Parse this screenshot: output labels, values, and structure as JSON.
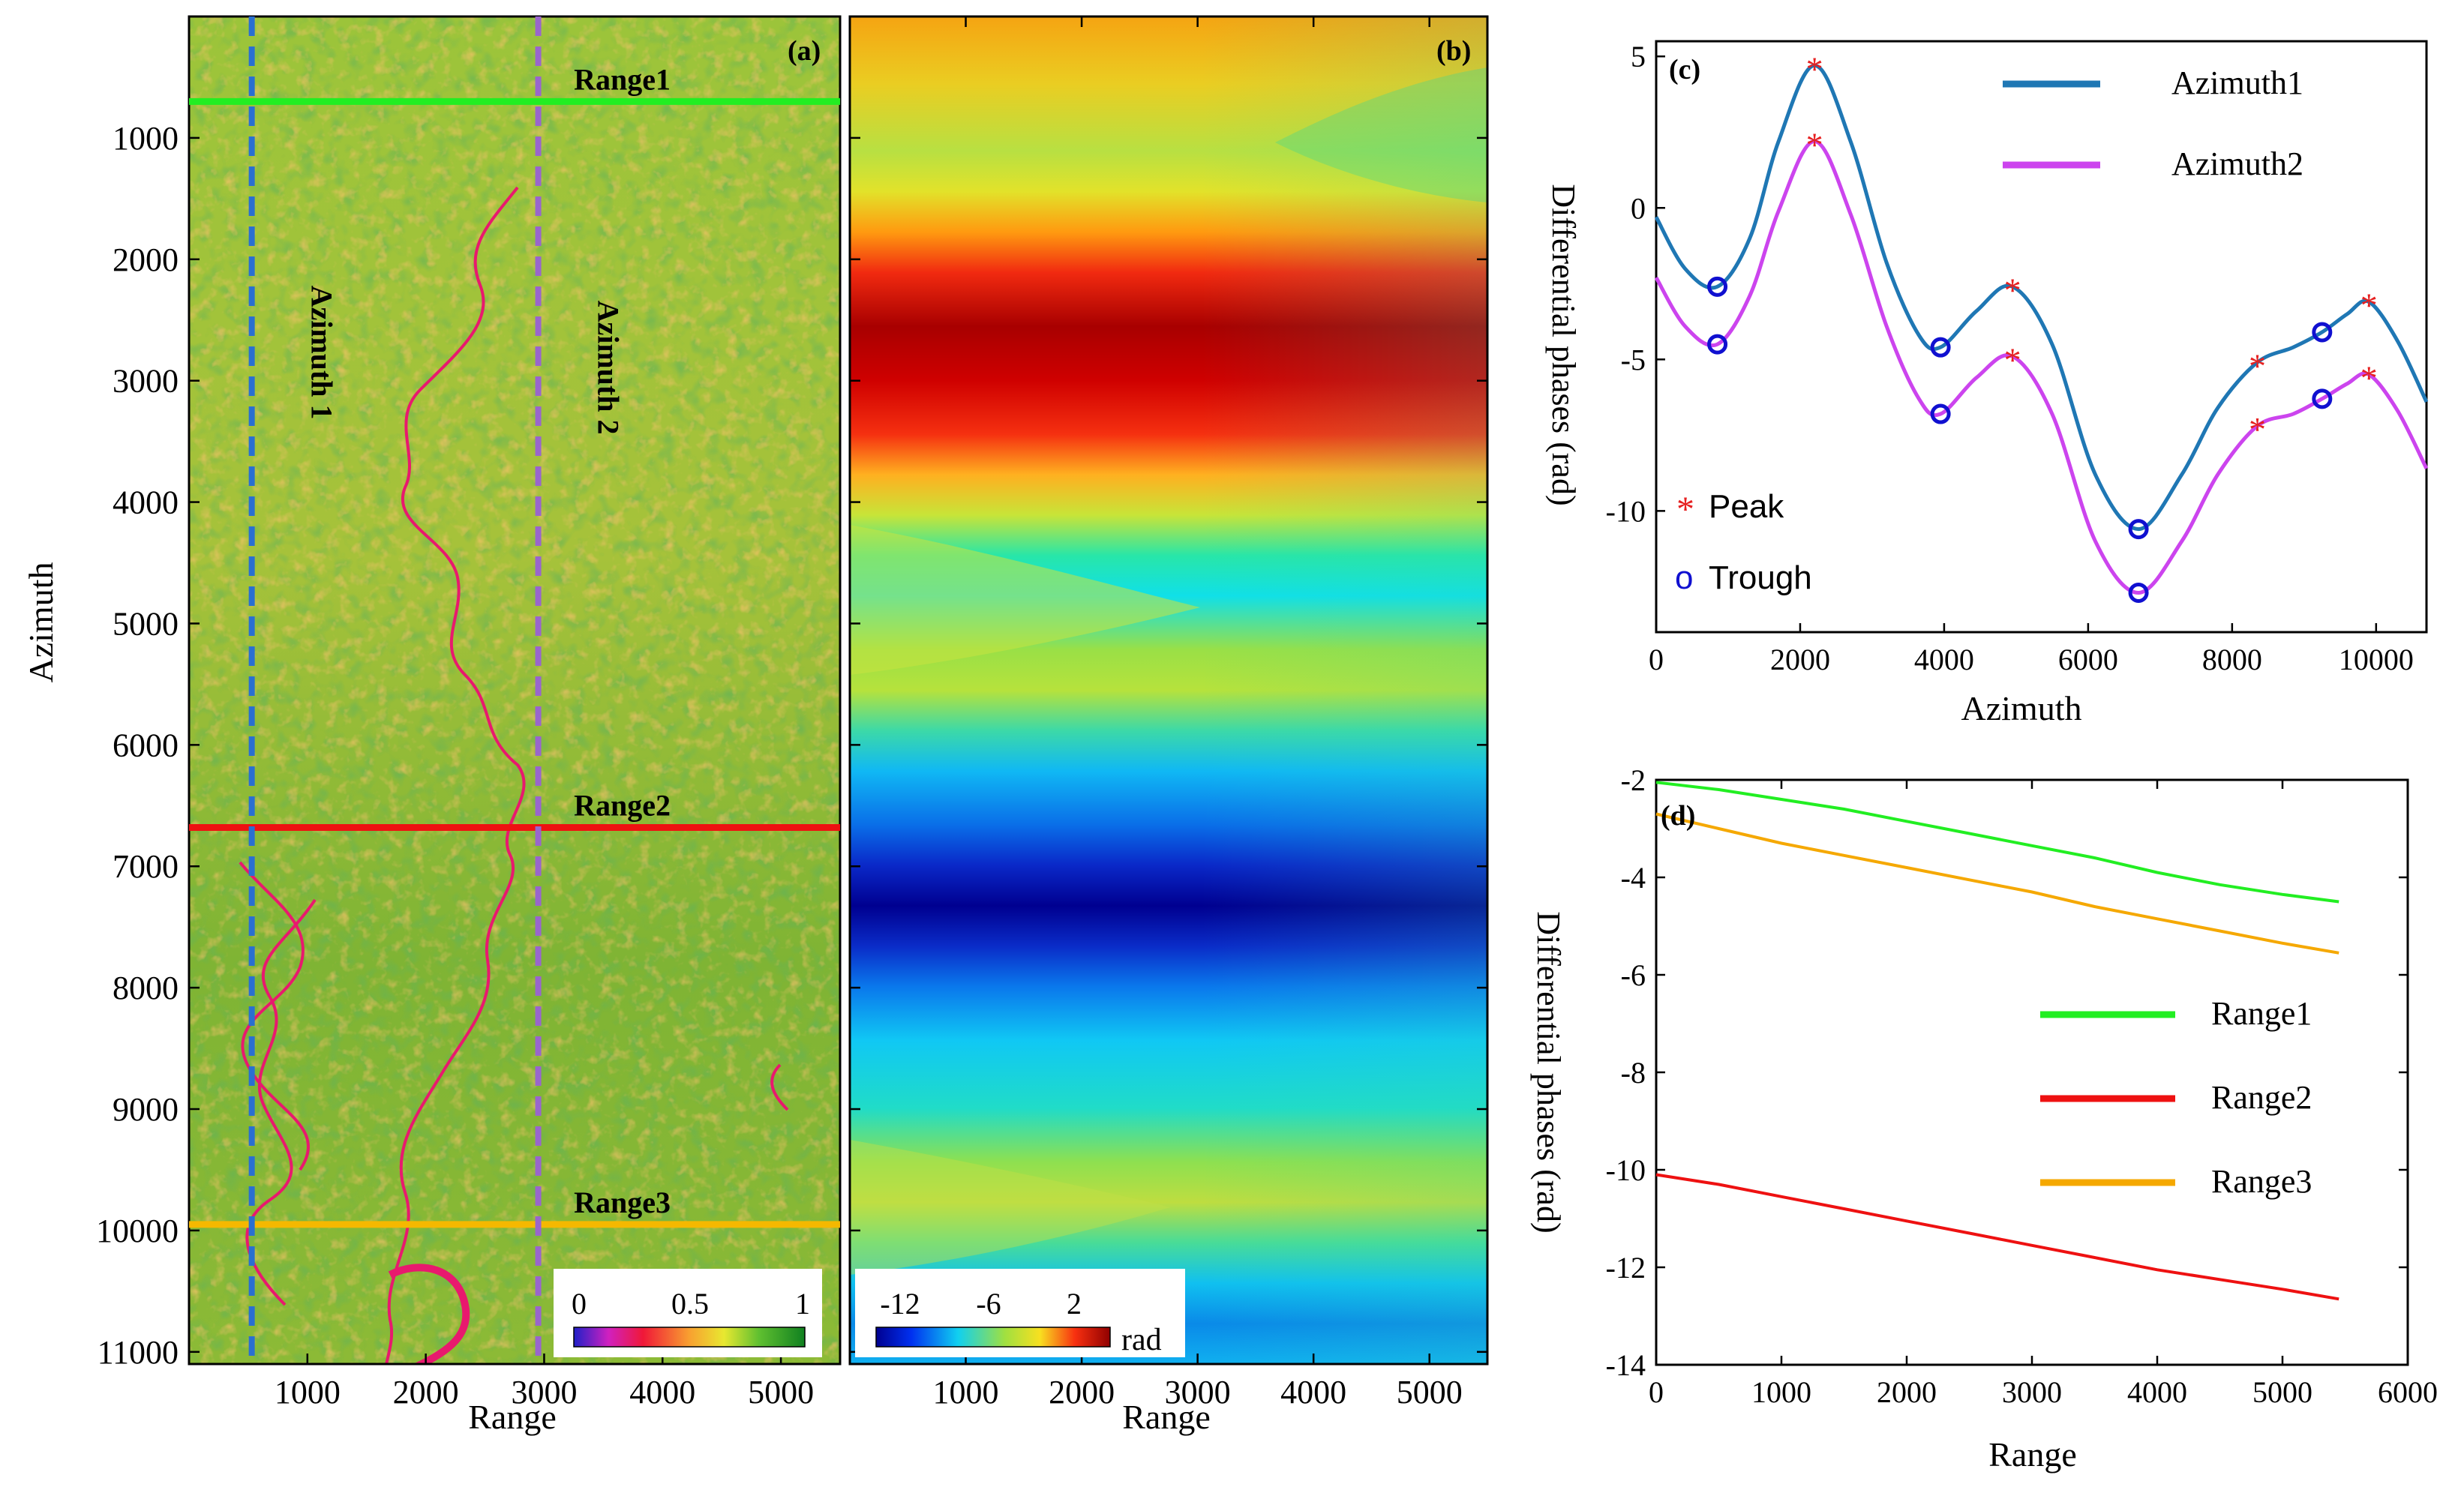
{
  "chart_data": [
    {
      "panel": "a",
      "type": "heatmap",
      "panel_label": "(a)",
      "description_labels": {
        "xlabel": "Range",
        "ylabel": "Azimuth"
      },
      "x_ticks": [
        1000,
        2000,
        3000,
        4000,
        5000
      ],
      "y_ticks": [
        1000,
        2000,
        3000,
        4000,
        5000,
        6000,
        7000,
        8000,
        9000,
        10000,
        11000
      ],
      "xlim": [
        0,
        5500
      ],
      "ylim": [
        0,
        11100
      ],
      "lines": [
        {
          "name": "Range1",
          "axis": "azimuth",
          "value": 700,
          "color": "#22ee22"
        },
        {
          "name": "Range2",
          "axis": "azimuth",
          "value": 6680,
          "color": "#ee1111"
        },
        {
          "name": "Range3",
          "axis": "azimuth",
          "value": 9950,
          "color": "#f5b800"
        },
        {
          "name": "Azimuth 1",
          "axis": "range",
          "value": 530,
          "color": "#2a6fd1"
        },
        {
          "name": "Azimuth 2",
          "axis": "range",
          "value": 2950,
          "color": "#9966cc"
        }
      ],
      "colorbar": {
        "ticks": [
          "0",
          "0.5",
          "1"
        ],
        "min": 0,
        "max": 1
      }
    },
    {
      "panel": "b",
      "type": "heatmap",
      "panel_label": "(b)",
      "xlabel": "Range",
      "x_ticks": [
        1000,
        2000,
        3000,
        4000,
        5000
      ],
      "colorbar": {
        "ticks": [
          "-12",
          "-6",
          "2"
        ],
        "unit": "rad",
        "min": -14,
        "max": 6
      }
    },
    {
      "panel": "c",
      "type": "line",
      "panel_label": "(c)",
      "xlabel": "Azimuth",
      "ylabel": "Differential phases (rad)",
      "xlim": [
        0,
        10700
      ],
      "ylim": [
        -14,
        5.5
      ],
      "x_ticks": [
        0,
        2000,
        4000,
        6000,
        8000,
        10000
      ],
      "y_ticks": [
        5,
        0,
        -5,
        -10
      ],
      "series": [
        {
          "name": "Azimuth1",
          "color": "#1f77b4",
          "x": [
            0,
            400,
            850,
            1300,
            1700,
            2200,
            2700,
            3200,
            3650,
            3950,
            4450,
            4950,
            5500,
            6100,
            6700,
            7300,
            7800,
            8350,
            8850,
            9250,
            9600,
            9900,
            10300,
            10700
          ],
          "y": [
            -0.3,
            -2.0,
            -2.6,
            -1.0,
            2.2,
            4.7,
            2.2,
            -1.8,
            -4.2,
            -4.6,
            -3.4,
            -2.6,
            -4.5,
            -8.8,
            -10.6,
            -8.8,
            -6.6,
            -5.1,
            -4.6,
            -4.1,
            -3.5,
            -3.1,
            -4.4,
            -6.4
          ]
        },
        {
          "name": "Azimuth2",
          "color": "#cc44ee",
          "x": [
            0,
            400,
            850,
            1300,
            1700,
            2200,
            2700,
            3200,
            3650,
            3950,
            4450,
            4950,
            5500,
            6100,
            6700,
            7300,
            7800,
            8350,
            8850,
            9250,
            9600,
            9900,
            10300,
            10700
          ],
          "y": [
            -2.3,
            -3.9,
            -4.5,
            -2.9,
            -0.1,
            2.2,
            -0.2,
            -3.9,
            -6.3,
            -6.8,
            -5.6,
            -4.9,
            -6.8,
            -11.0,
            -12.7,
            -11.0,
            -8.8,
            -7.2,
            -6.8,
            -6.3,
            -5.8,
            -5.5,
            -6.7,
            -8.6
          ]
        }
      ],
      "peaks": {
        "Azimuth1": [
          [
            2200,
            4.7
          ],
          [
            4950,
            -2.6
          ],
          [
            8350,
            -5.1
          ],
          [
            9900,
            -3.1
          ]
        ],
        "Azimuth2": [
          [
            2200,
            2.2
          ],
          [
            4950,
            -4.9
          ],
          [
            8350,
            -7.2
          ],
          [
            9900,
            -5.5
          ]
        ]
      },
      "troughs": {
        "Azimuth1": [
          [
            850,
            -2.6
          ],
          [
            3950,
            -4.6
          ],
          [
            6700,
            -10.6
          ],
          [
            9250,
            -4.1
          ]
        ],
        "Azimuth2": [
          [
            850,
            -4.5
          ],
          [
            3950,
            -6.8
          ],
          [
            6700,
            -12.7
          ],
          [
            9250,
            -6.3
          ]
        ]
      },
      "legend": {
        "peak_symbol": "*",
        "peak_label": "Peak",
        "trough_symbol": "o",
        "trough_label": "Trough"
      }
    },
    {
      "panel": "d",
      "type": "line",
      "panel_label": "(d)",
      "xlabel": "Range",
      "ylabel": "Differential phases (rad)",
      "xlim": [
        0,
        6000
      ],
      "ylim": [
        -14,
        -2
      ],
      "x_ticks": [
        0,
        1000,
        2000,
        3000,
        4000,
        5000,
        6000
      ],
      "y_ticks": [
        -2,
        -4,
        -6,
        -8,
        -10,
        -12,
        -14
      ],
      "series": [
        {
          "name": "Range1",
          "color": "#22ee22",
          "x": [
            0,
            500,
            1000,
            1500,
            2000,
            2500,
            3000,
            3500,
            4000,
            4500,
            5000,
            5450
          ],
          "y": [
            -2.05,
            -2.2,
            -2.4,
            -2.6,
            -2.85,
            -3.1,
            -3.35,
            -3.6,
            -3.9,
            -4.15,
            -4.35,
            -4.5
          ]
        },
        {
          "name": "Range2",
          "color": "#ee1111",
          "x": [
            0,
            500,
            1000,
            1500,
            2000,
            2500,
            3000,
            3500,
            4000,
            4500,
            5000,
            5450
          ],
          "y": [
            -10.1,
            -10.3,
            -10.55,
            -10.8,
            -11.05,
            -11.3,
            -11.55,
            -11.8,
            -12.05,
            -12.25,
            -12.45,
            -12.65
          ]
        },
        {
          "name": "Range3",
          "color": "#f5a800",
          "x": [
            0,
            500,
            1000,
            1500,
            2000,
            2500,
            3000,
            3500,
            4000,
            4500,
            5000,
            5450
          ],
          "y": [
            -2.7,
            -3.0,
            -3.3,
            -3.55,
            -3.8,
            -4.05,
            -4.3,
            -4.6,
            -4.85,
            -5.1,
            -5.35,
            -5.55
          ]
        }
      ]
    }
  ]
}
